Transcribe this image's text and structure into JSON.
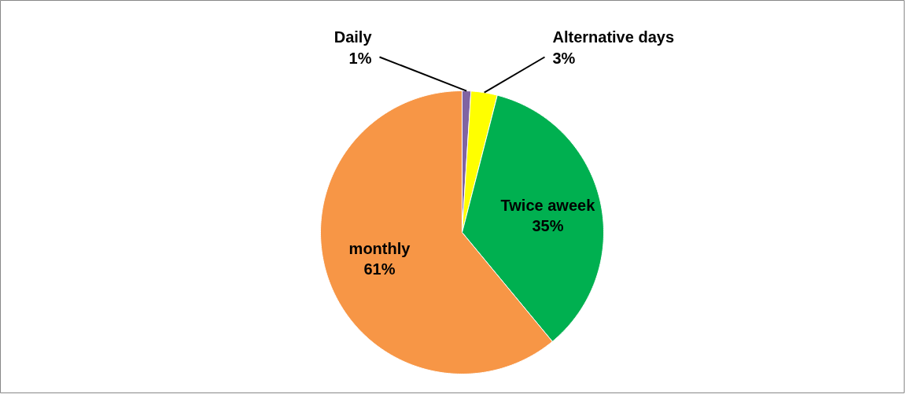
{
  "chart_data": {
    "type": "pie",
    "categories": [
      "Daily",
      "Alternative days",
      "Twice aweek",
      "monthly"
    ],
    "values": [
      1,
      3,
      35,
      61
    ],
    "value_labels": [
      "1%",
      "3%",
      "35%",
      "61%"
    ],
    "colors": [
      "#8064a2",
      "#ffff00",
      "#00b050",
      "#f79646"
    ]
  }
}
